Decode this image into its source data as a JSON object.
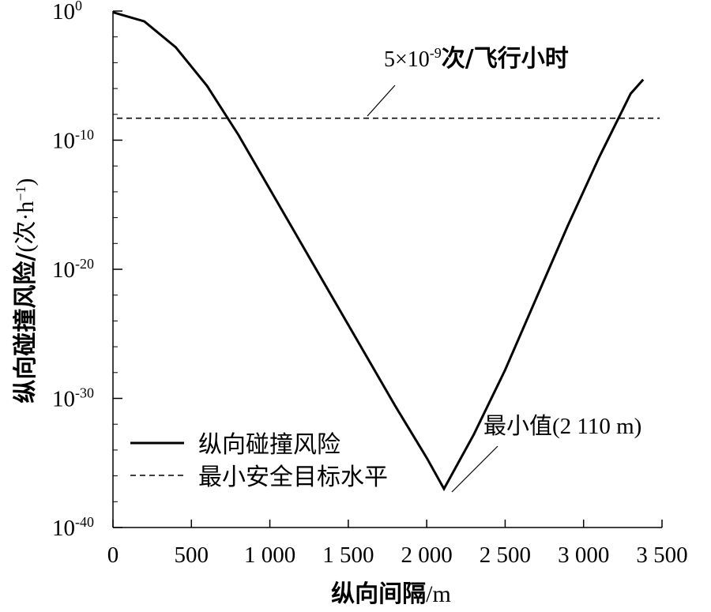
{
  "chart_data": {
    "type": "line",
    "xlabel_cn": "纵向间隔",
    "xlabel_unit": "/m",
    "ylabel_cn": "纵向碰撞风险/",
    "ylabel_unit_open": "(",
    "ylabel_unit_cn": "次",
    "ylabel_unit_rest": "·h",
    "ylabel_unit_exp": "−1",
    "ylabel_unit_close": ")",
    "xlim": [
      0,
      3500
    ],
    "ylim_exponent": [
      -40,
      0
    ],
    "y_scale": "log",
    "x_ticks": [
      "0",
      "500",
      "1 000",
      "1 500",
      "2 000",
      "2 500",
      "3 000",
      "3 500"
    ],
    "x_tick_values": [
      0,
      500,
      1000,
      1500,
      2000,
      2500,
      3000,
      3500
    ],
    "y_tick_base": "10",
    "y_ticks_exp": [
      "0",
      "-10",
      "-20",
      "-30",
      "-40"
    ],
    "y_tick_values_exp": [
      0,
      -10,
      -20,
      -30,
      -40
    ],
    "series": [
      {
        "name": "纵向碰撞风险",
        "style": "solid",
        "x": [
          0,
          200,
          400,
          600,
          800,
          1000,
          1200,
          1400,
          1600,
          1800,
          2000,
          2110,
          2300,
          2500,
          2700,
          2900,
          3100,
          3300,
          3380
        ],
        "log10_y": [
          -0.1,
          -0.8,
          -2.8,
          -5.8,
          -9.6,
          -13.8,
          -18.0,
          -22.2,
          -26.4,
          -30.6,
          -34.6,
          -37.0,
          -32.8,
          -27.8,
          -22.2,
          -16.6,
          -11.3,
          -6.4,
          -5.3
        ]
      },
      {
        "name": "最小安全目标水平",
        "style": "dashed",
        "value_label": "5×10⁻⁹",
        "log10_y": -8.3
      }
    ],
    "legend": {
      "placement": "bottom-left",
      "entries": [
        "纵向碰撞风险",
        "最小安全目标水平"
      ]
    },
    "annotations": {
      "threshold_value": "5×10",
      "threshold_exp": "-9",
      "threshold_cn": "次/飞行小时",
      "minimum_cn": "最小值",
      "minimum_value": "(2 110 m)"
    },
    "minimum_point": {
      "x": 2110,
      "log10_y": -37.0
    }
  }
}
